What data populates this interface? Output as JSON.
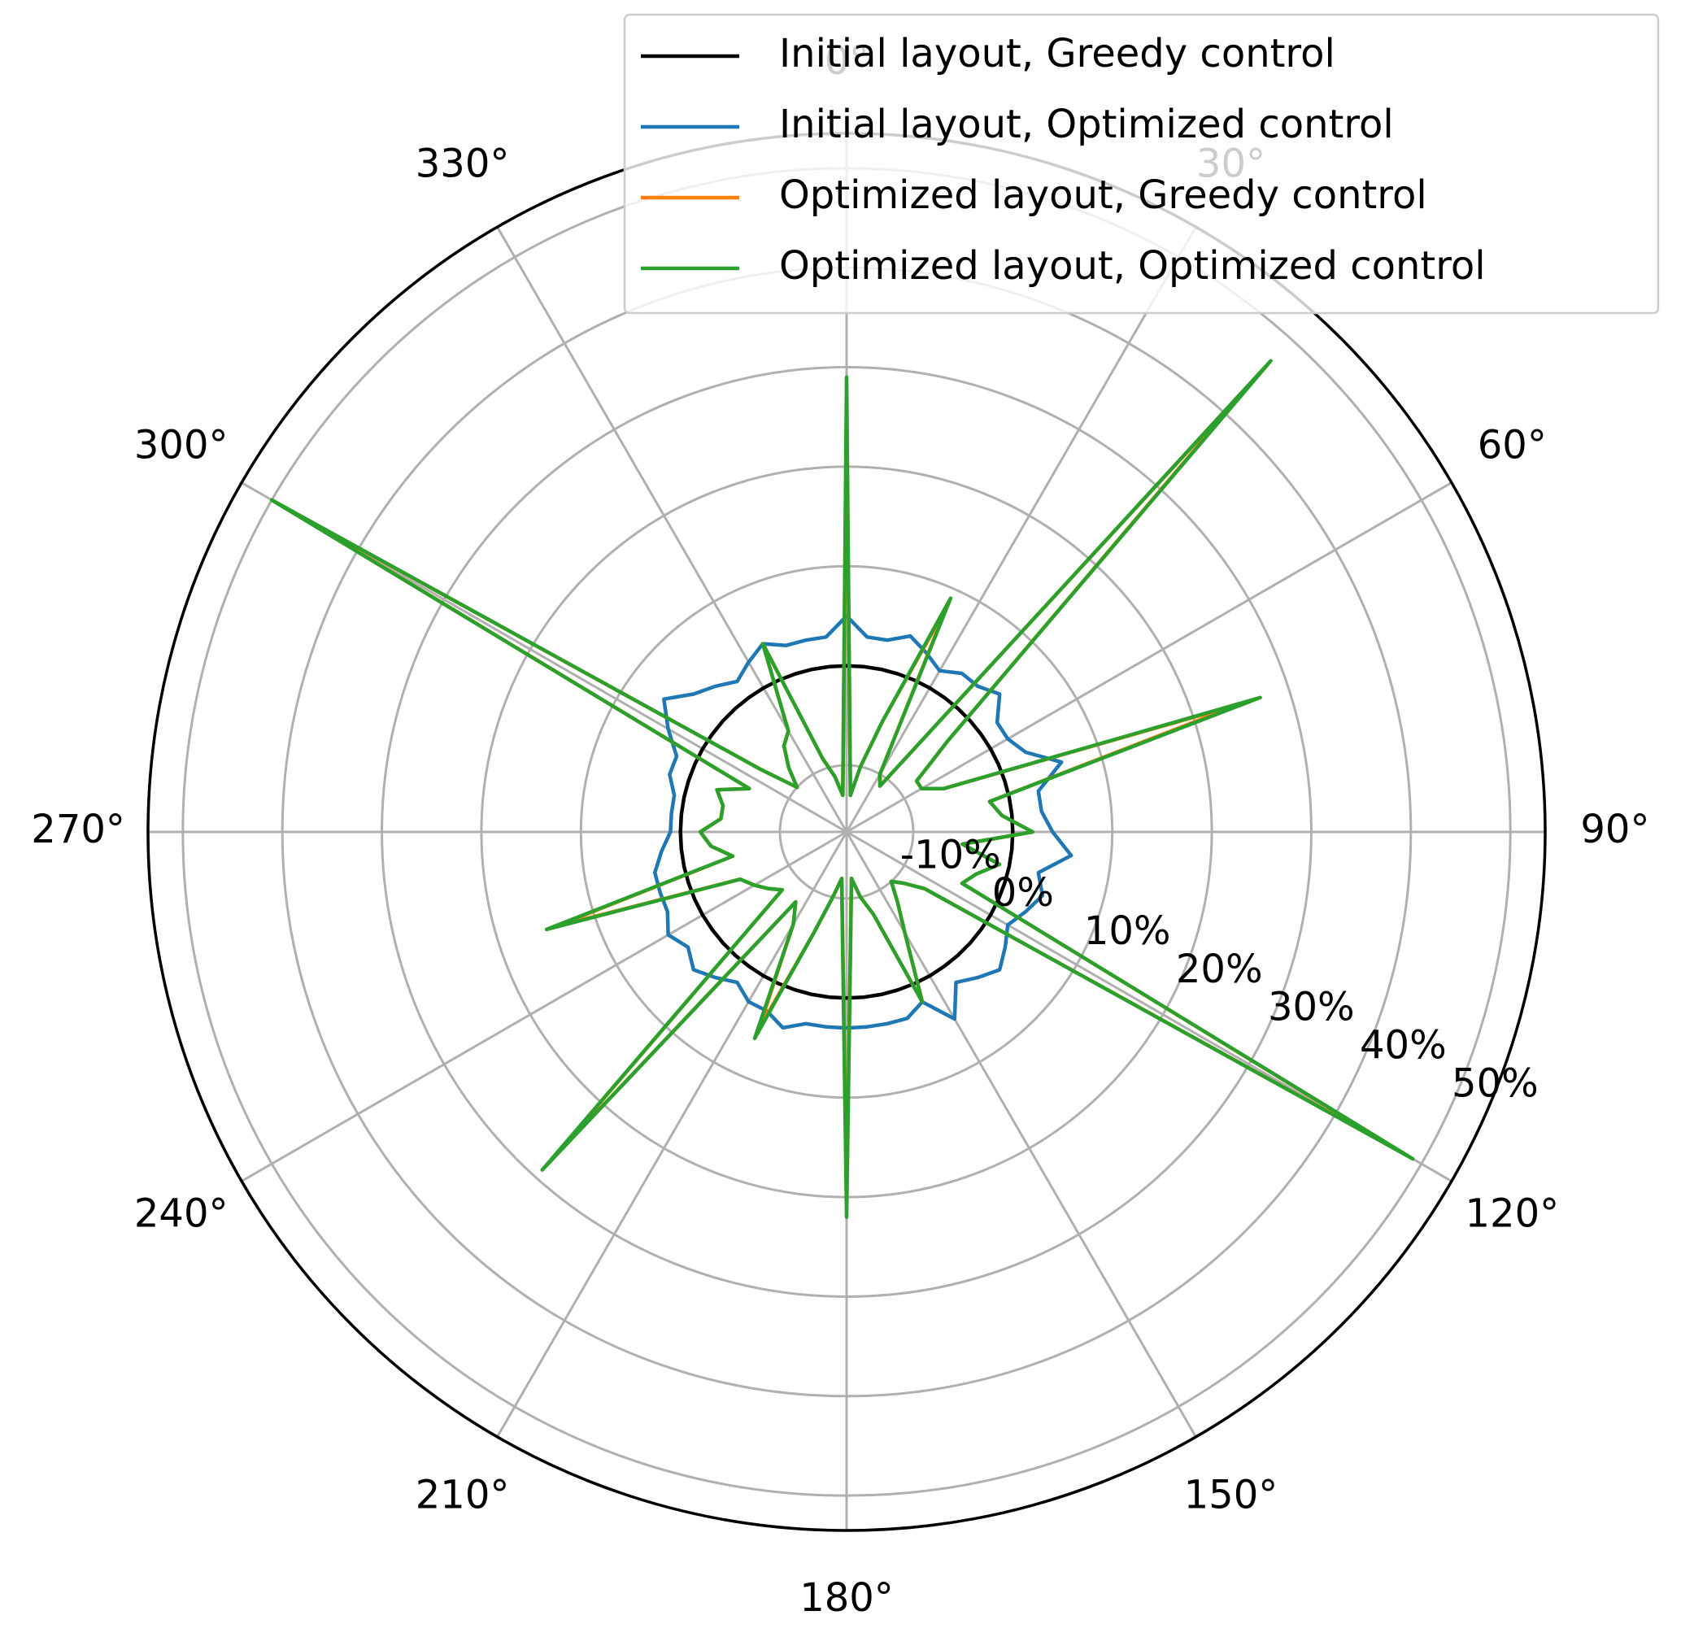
{
  "chart_data": {
    "type": "polar-line",
    "theta_zero": "N",
    "theta_direction": "clockwise",
    "grid": true,
    "legend": "upper right",
    "x": [
      0,
      6,
      12,
      18,
      24,
      30,
      36,
      42,
      48,
      54,
      60,
      66,
      72,
      78,
      84,
      90,
      96,
      102,
      108,
      114,
      120,
      126,
      132,
      138,
      144,
      150,
      156,
      162,
      168,
      174,
      180,
      186,
      192,
      198,
      204,
      210,
      216,
      222,
      228,
      234,
      240,
      246,
      252,
      258,
      264,
      270,
      276,
      282,
      288,
      294,
      300,
      306,
      312,
      318,
      324,
      330,
      336,
      342,
      348,
      354
    ],
    "xticks": [
      {
        "value": 0,
        "label": "0°"
      },
      {
        "value": 30,
        "label": "30°"
      },
      {
        "value": 60,
        "label": "60°"
      },
      {
        "value": 90,
        "label": "90°"
      },
      {
        "value": 120,
        "label": "120°"
      },
      {
        "value": 150,
        "label": "150°"
      },
      {
        "value": 180,
        "label": "180°"
      },
      {
        "value": 210,
        "label": "210°"
      },
      {
        "value": 240,
        "label": "240°"
      },
      {
        "value": 270,
        "label": "270°"
      },
      {
        "value": 300,
        "label": "300°"
      },
      {
        "value": 330,
        "label": "330°"
      }
    ],
    "ylim": [
      -16.7,
      53.5
    ],
    "yticks": [
      {
        "value": -10,
        "label": "-10%"
      },
      {
        "value": 0,
        "label": "0%"
      },
      {
        "value": 10,
        "label": "10%"
      },
      {
        "value": 20,
        "label": "20%"
      },
      {
        "value": 30,
        "label": "30%"
      },
      {
        "value": 40,
        "label": "40%"
      },
      {
        "value": 50,
        "label": "50%"
      }
    ],
    "series": [
      {
        "name": "Initial layout, Greedy control",
        "color": "#000000",
        "values": [
          0,
          0,
          0,
          0,
          0,
          0,
          0,
          0,
          0,
          0,
          0,
          0,
          0,
          0,
          0,
          0,
          0,
          0,
          0,
          0,
          0,
          0,
          0,
          0,
          0,
          0,
          0,
          0,
          0,
          0,
          0,
          0,
          0,
          0,
          0,
          0,
          0,
          0,
          0,
          0,
          0,
          0,
          0,
          0,
          0,
          0,
          0,
          0,
          0,
          0,
          0,
          0,
          0,
          0,
          0,
          0,
          0,
          0,
          0,
          0
        ]
      },
      {
        "name": "Initial layout, Optimized control",
        "color": "#1f77b4",
        "values": [
          5,
          3,
          3,
          4,
          3,
          2,
          3,
          3,
          4,
          2,
          2,
          3,
          6,
          3,
          3,
          4,
          6,
          3,
          4,
          3,
          2,
          3,
          4,
          3,
          2,
          5,
          2,
          3,
          3,
          3,
          3,
          3,
          3,
          4,
          3,
          3,
          2,
          3,
          4,
          3,
          4,
          3,
          3,
          3,
          2,
          1,
          1,
          1,
          2,
          2,
          4,
          6,
          4,
          3,
          2,
          3,
          4,
          3,
          3,
          3
        ]
      },
      {
        "name": "Optimized layout, Greedy control",
        "color": "#ff7f0e",
        "values": [
          26,
          -13,
          -10,
          -5,
          8,
          -10,
          -11,
          45,
          -3,
          -8,
          -8,
          -6,
          25,
          -2,
          -1,
          2,
          -5,
          -1,
          -3,
          -4,
          48,
          -7,
          -9,
          -10,
          -8,
          -5,
          2,
          -8,
          -10,
          -12,
          20,
          -12,
          -10,
          -6,
          5,
          -6,
          -8,
          28,
          -8,
          -7,
          -6,
          -5,
          14,
          -5,
          -3,
          -2,
          -4,
          -4,
          -3,
          -6,
          49,
          -6,
          -10,
          -8,
          -6,
          -5,
          4,
          -9,
          -11,
          -13
        ]
      },
      {
        "name": "Optimized layout, Optimized control",
        "color": "#2ca02c",
        "values": [
          29,
          -13,
          -10,
          -5,
          9,
          -10,
          -11,
          47,
          -3,
          -8,
          -8,
          -6,
          27,
          -2,
          -1,
          2,
          -5,
          -1,
          -3,
          -4,
          49,
          -7,
          -9,
          -10,
          -8,
          -5,
          2,
          -8,
          -10,
          -12,
          22,
          -12,
          -10,
          -6,
          6,
          -6,
          -8,
          29,
          -8,
          -7,
          -6,
          -5,
          15,
          -5,
          -3,
          -2,
          -4,
          -4,
          -3,
          -6,
          50,
          -6,
          -10,
          -8,
          -6,
          -5,
          4,
          -9,
          -11,
          -13
        ]
      }
    ]
  }
}
